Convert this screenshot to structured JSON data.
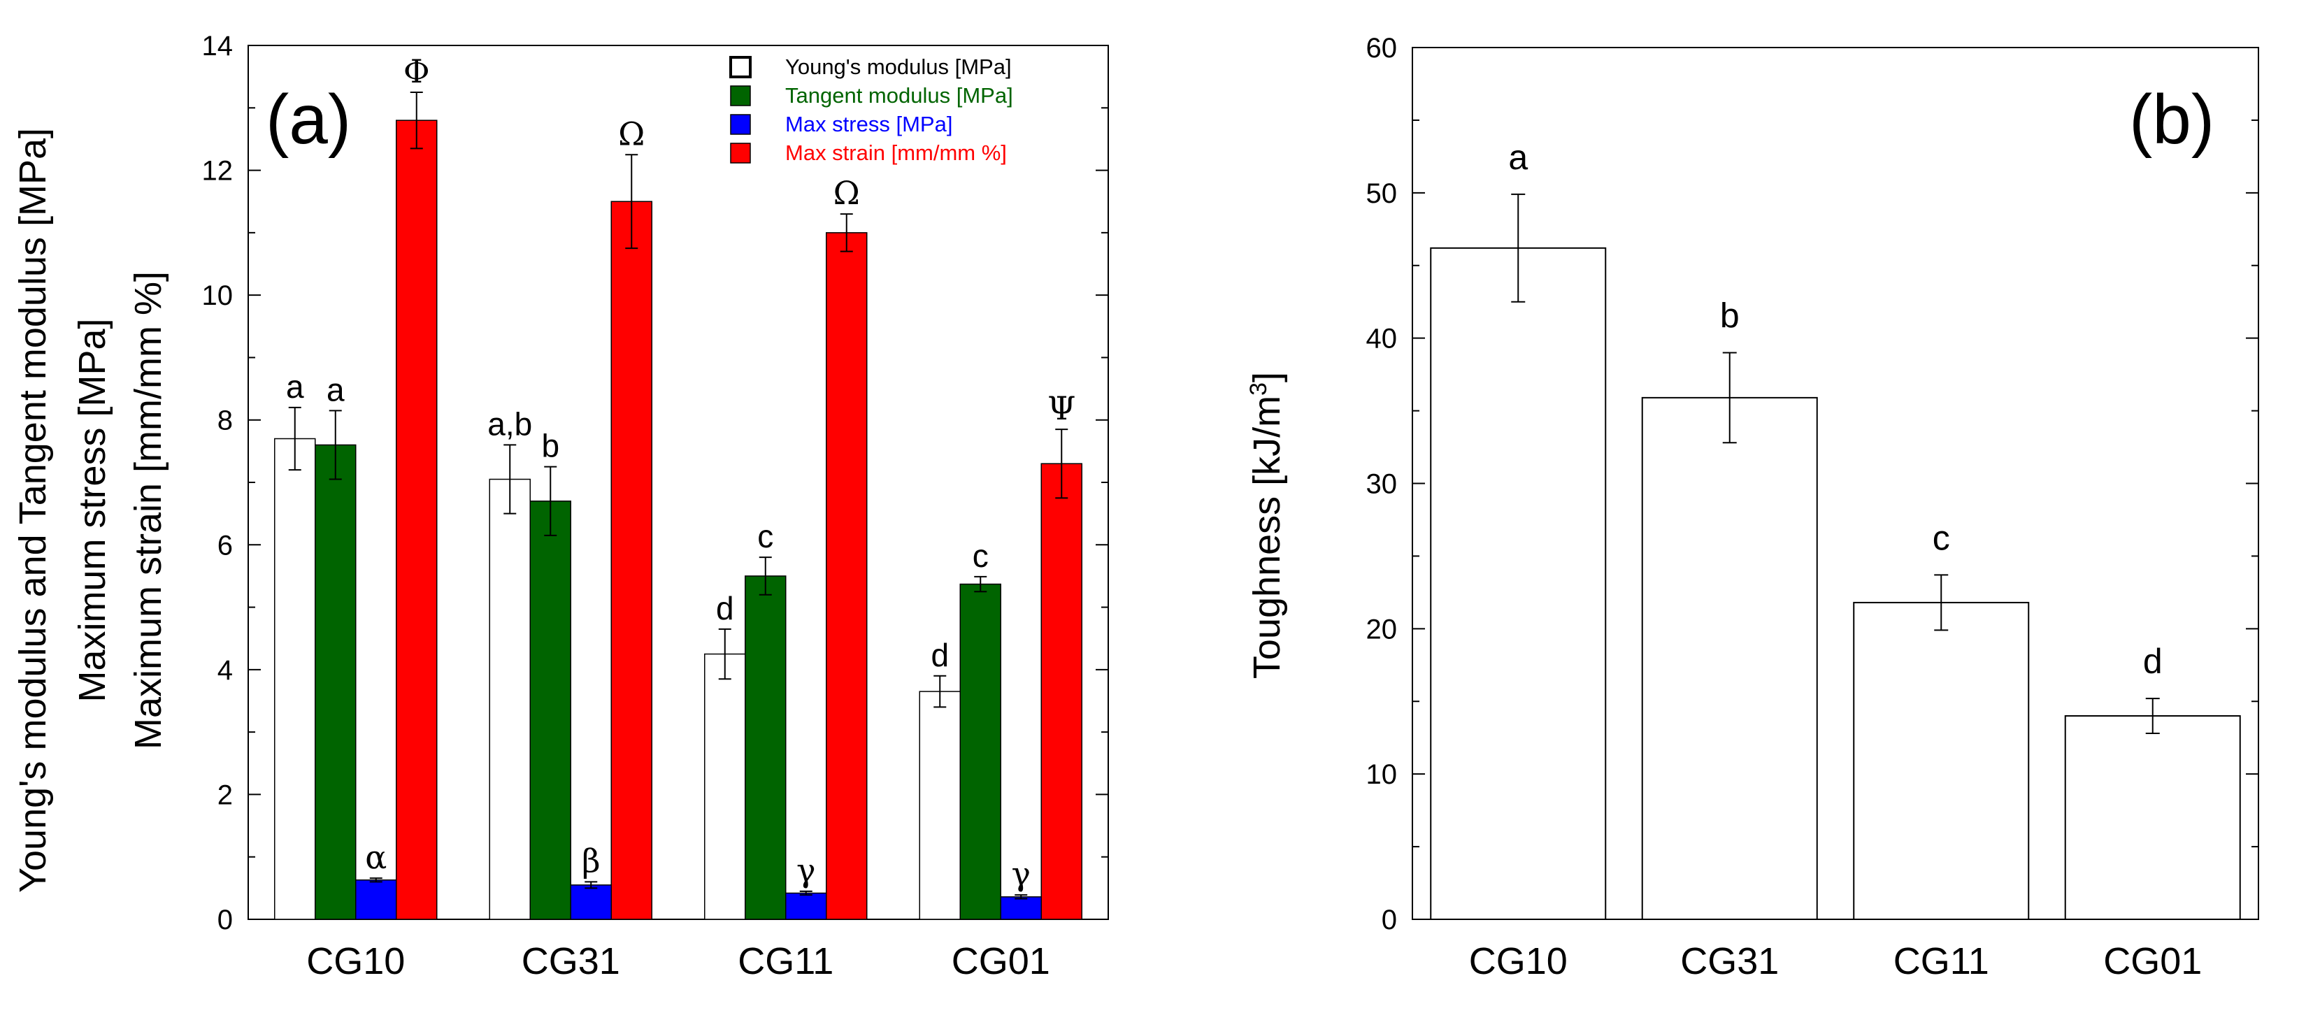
{
  "chart_data": [
    {
      "type": "bar",
      "panel_label": "(a)",
      "title": "",
      "ylabel_lines": [
        "Young's modulus and Tangent modulus [MPa]",
        "Maximum stress [MPa]",
        "Maximum strain [mm/mm %]"
      ],
      "xlabel": "",
      "ylim": [
        0,
        14
      ],
      "yticks": [
        0,
        2,
        4,
        6,
        8,
        10,
        12,
        14
      ],
      "categories": [
        "CG10",
        "CG31",
        "CG11",
        "CG01"
      ],
      "series": [
        {
          "name": "Young's modulus [MPa]",
          "color": "#ffffff",
          "stroke": "#000000",
          "legend_text_color": "#000000",
          "values": [
            7.7,
            7.05,
            4.25,
            3.65
          ],
          "errors": [
            0.5,
            0.55,
            0.4,
            0.25
          ],
          "labels": [
            "a",
            "a,b",
            "d",
            "d"
          ]
        },
        {
          "name": "Tangent modulus [MPa]",
          "color": "#006400",
          "stroke": "#000000",
          "legend_text_color": "#006400",
          "values": [
            7.6,
            6.7,
            5.5,
            5.37
          ],
          "errors": [
            0.55,
            0.55,
            0.3,
            0.12
          ],
          "labels": [
            "a",
            "b",
            "c",
            "c"
          ]
        },
        {
          "name": "Max stress [MPa]",
          "color": "#0000ff",
          "stroke": "#000000",
          "legend_text_color": "#0000ff",
          "values": [
            0.63,
            0.55,
            0.42,
            0.36
          ],
          "errors": [
            0.03,
            0.05,
            0.03,
            0.03
          ],
          "labels": [
            "α",
            "β",
            "γ",
            "γ"
          ]
        },
        {
          "name": "Max strain [mm/mm %]",
          "color": "#ff0000",
          "stroke": "#000000",
          "legend_text_color": "#ff0000",
          "values": [
            12.8,
            11.5,
            11.0,
            7.3
          ],
          "errors": [
            0.45,
            0.75,
            0.3,
            0.55
          ],
          "labels": [
            "Φ",
            "Ω",
            "Ω",
            "Ψ"
          ]
        }
      ],
      "legend_position": "top-right"
    },
    {
      "type": "bar",
      "panel_label": "(b)",
      "title": "",
      "ylabel": "Toughness [kJ/m",
      "ylabel_superscript": "3",
      "ylabel_suffix": "]",
      "xlabel": "",
      "ylim": [
        0,
        60
      ],
      "yticks": [
        0,
        10,
        20,
        30,
        40,
        50,
        60
      ],
      "categories": [
        "CG10",
        "CG31",
        "CG11",
        "CG01"
      ],
      "series": [
        {
          "name": "Toughness",
          "color": "#ffffff",
          "stroke": "#000000",
          "values": [
            46.2,
            35.9,
            21.8,
            14.0
          ],
          "errors": [
            3.7,
            3.1,
            1.9,
            1.2
          ],
          "labels": [
            "a",
            "b",
            "c",
            "d"
          ]
        }
      ]
    }
  ]
}
